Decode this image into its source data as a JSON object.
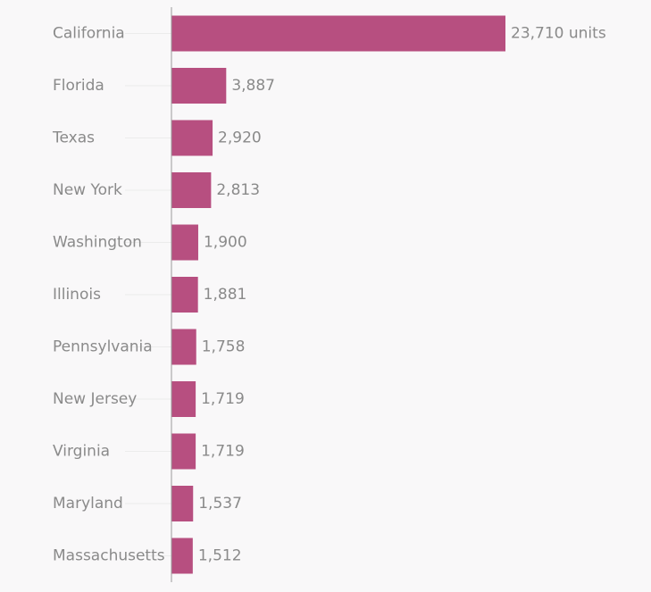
{
  "chart_data": {
    "type": "bar",
    "orientation": "horizontal",
    "title": "",
    "xlabel": "",
    "ylabel": "",
    "unit_suffix": " units",
    "categories": [
      "California",
      "Florida",
      "Texas",
      "New York",
      "Washington",
      "Illinois",
      "Pennsylvania",
      "New Jersey",
      "Virginia",
      "Maryland",
      "Massachusetts"
    ],
    "values": [
      23710,
      3887,
      2920,
      2813,
      1900,
      1881,
      1758,
      1719,
      1719,
      1537,
      1512
    ],
    "value_labels": [
      "23,710 units",
      "3,887",
      "2,920",
      "2,813",
      "1,900",
      "1,881",
      "1,758",
      "1,719",
      "1,719",
      "1,537",
      "1,512"
    ],
    "xlim": [
      0,
      23710
    ],
    "grid": false,
    "legend": "none",
    "colors": {
      "bar": "#b74f80",
      "label": "#8a8a8a",
      "axis": "#9a9a9a",
      "background": "#f9f8f9"
    }
  }
}
